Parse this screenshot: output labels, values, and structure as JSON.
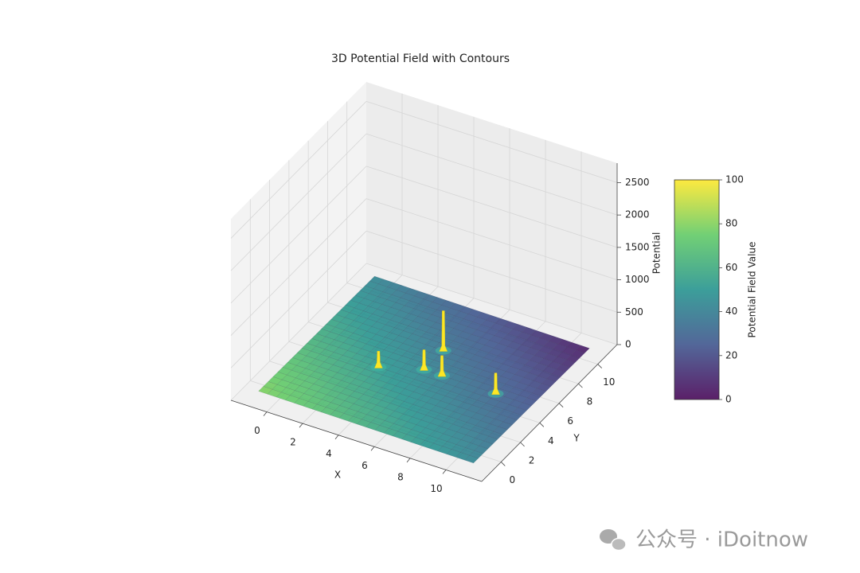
{
  "chart_data": {
    "type": "surface3d",
    "title": "3D Potential Field with Contours",
    "xlabel": "X",
    "ylabel": "Y",
    "zlabel": "Potential",
    "xlim": [
      -2,
      12
    ],
    "ylim": [
      -2,
      12
    ],
    "zlim": [
      0,
      2800
    ],
    "xticks": [
      0,
      2,
      4,
      6,
      8,
      10
    ],
    "yticks": [
      0,
      2,
      4,
      6,
      8,
      10
    ],
    "zticks": [
      0,
      500,
      1000,
      1500,
      2000,
      2500
    ],
    "grid": true,
    "colormap": "viridis",
    "surface": {
      "x": [
        -1,
        1,
        3,
        5,
        7,
        9,
        11
      ],
      "y": [
        -1,
        1,
        3,
        5,
        7,
        9,
        11
      ],
      "z": [
        [
          80,
          74,
          68,
          61,
          55,
          49,
          43
        ],
        [
          74,
          68,
          61,
          55,
          49,
          43,
          36
        ],
        [
          68,
          61,
          55,
          49,
          43,
          36,
          30
        ],
        [
          61,
          55,
          49,
          43,
          36,
          30,
          24
        ],
        [
          55,
          49,
          43,
          36,
          30,
          24,
          18
        ],
        [
          49,
          43,
          36,
          30,
          24,
          18,
          11
        ],
        [
          43,
          36,
          30,
          24,
          18,
          11,
          5
        ]
      ]
    },
    "peaks": [
      {
        "x": 3,
        "y": 4,
        "z": 300
      },
      {
        "x": 5,
        "y": 5,
        "z": 350
      },
      {
        "x": 5,
        "y": 7,
        "z": 650
      },
      {
        "x": 6,
        "y": 5,
        "z": 350
      },
      {
        "x": 9,
        "y": 5,
        "z": 350
      }
    ],
    "colorbar": {
      "label": "Potential Field Value",
      "lim": [
        0,
        100
      ],
      "ticks": [
        0,
        20,
        40,
        60,
        80,
        100
      ]
    }
  },
  "watermark": "公众号 · iDoitnow"
}
